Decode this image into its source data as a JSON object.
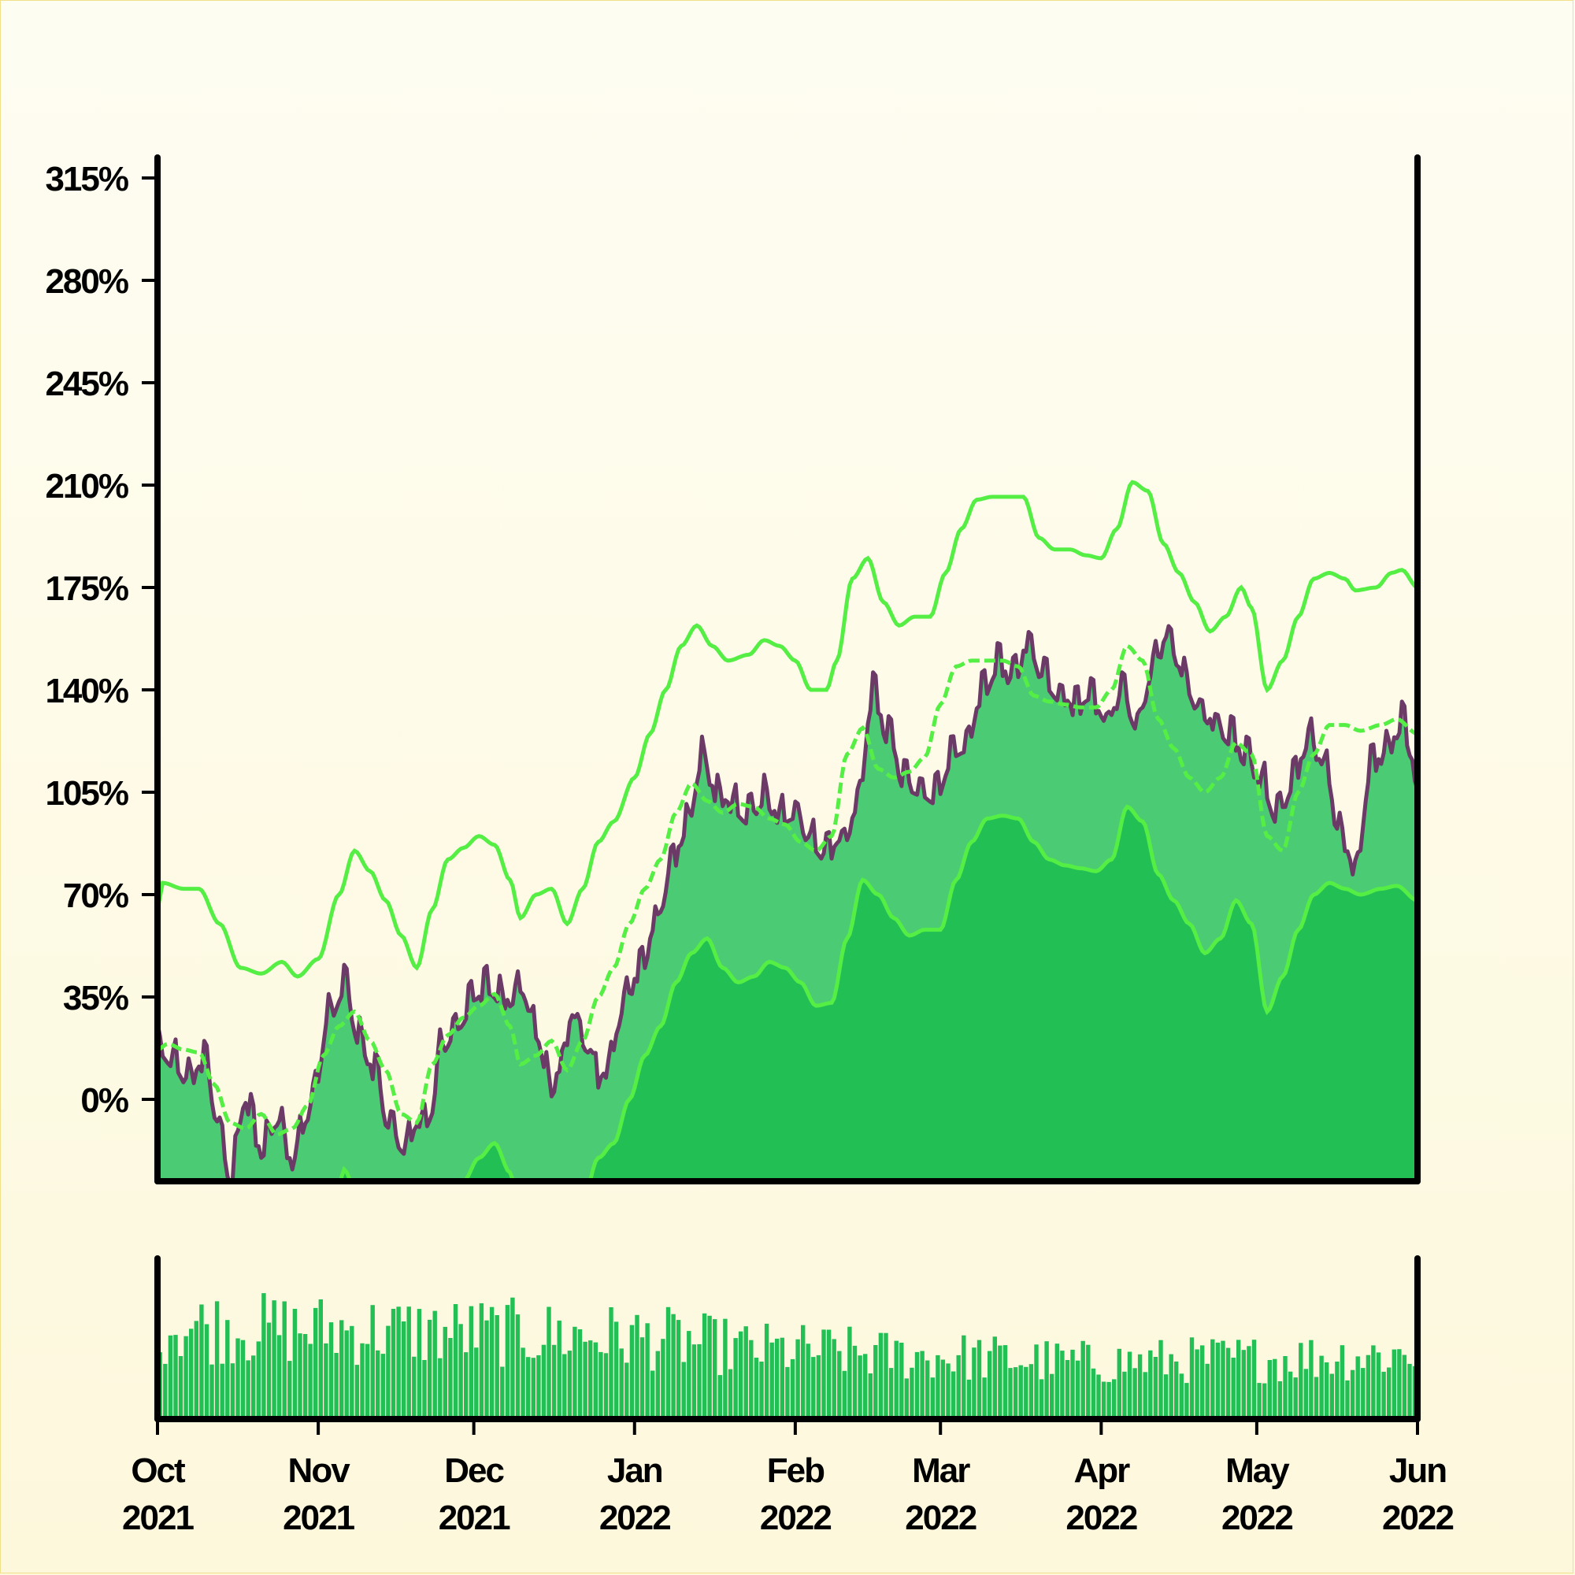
{
  "colors": {
    "band_fill": "#4ccb75",
    "lower_fill": "#22bf55",
    "band_line": "#55ee44",
    "price_line": "#6b3a66",
    "volume": "#22bf55",
    "axis": "#000000"
  },
  "chart_data": {
    "type": "area",
    "description_series": [
      "price",
      "upper band",
      "middle band",
      "lower band",
      "volume"
    ],
    "y_ticks": [
      "315%",
      "280%",
      "245%",
      "210%",
      "175%",
      "140%",
      "105%",
      "70%",
      "35%",
      "0%"
    ],
    "y_tick_values": [
      315,
      280,
      245,
      210,
      175,
      140,
      105,
      70,
      35,
      0
    ],
    "ylim": [
      -28,
      322
    ],
    "x_ticks": [
      {
        "month": "Oct",
        "year": "2021"
      },
      {
        "month": "Nov",
        "year": "2021"
      },
      {
        "month": "Dec",
        "year": "2021"
      },
      {
        "month": "Jan",
        "year": "2022"
      },
      {
        "month": "Feb",
        "year": "2022"
      },
      {
        "month": "Mar",
        "year": "2022"
      },
      {
        "month": "Apr",
        "year": "2022"
      },
      {
        "month": "May",
        "year": "2022"
      },
      {
        "month": "Jun",
        "year": "2022"
      }
    ],
    "x_tick_days": [
      0,
      31,
      61,
      92,
      123,
      151,
      182,
      212,
      243
    ],
    "xlim_days": [
      0,
      243
    ],
    "price_anchors": [
      [
        0,
        20
      ],
      [
        3,
        15
      ],
      [
        6,
        8
      ],
      [
        9,
        14
      ],
      [
        12,
        -8
      ],
      [
        14,
        -25
      ],
      [
        17,
        0
      ],
      [
        20,
        -16
      ],
      [
        23,
        -5
      ],
      [
        26,
        -20
      ],
      [
        29,
        -3
      ],
      [
        31,
        10
      ],
      [
        33,
        30
      ],
      [
        36,
        40
      ],
      [
        39,
        22
      ],
      [
        42,
        10
      ],
      [
        45,
        -10
      ],
      [
        48,
        -15
      ],
      [
        50,
        -5
      ],
      [
        52,
        -8
      ],
      [
        55,
        20
      ],
      [
        58,
        28
      ],
      [
        61,
        35
      ],
      [
        64,
        40
      ],
      [
        67,
        35
      ],
      [
        70,
        38
      ],
      [
        73,
        25
      ],
      [
        76,
        5
      ],
      [
        78,
        15
      ],
      [
        80,
        30
      ],
      [
        83,
        20
      ],
      [
        85,
        8
      ],
      [
        87,
        12
      ],
      [
        90,
        35
      ],
      [
        93,
        45
      ],
      [
        96,
        60
      ],
      [
        99,
        80
      ],
      [
        102,
        95
      ],
      [
        105,
        118
      ],
      [
        108,
        105
      ],
      [
        111,
        102
      ],
      [
        114,
        98
      ],
      [
        117,
        105
      ],
      [
        120,
        98
      ],
      [
        123,
        100
      ],
      [
        126,
        90
      ],
      [
        129,
        85
      ],
      [
        132,
        90
      ],
      [
        135,
        100
      ],
      [
        138,
        140
      ],
      [
        141,
        125
      ],
      [
        144,
        110
      ],
      [
        147,
        108
      ],
      [
        150,
        105
      ],
      [
        153,
        118
      ],
      [
        156,
        120
      ],
      [
        159,
        140
      ],
      [
        162,
        150
      ],
      [
        165,
        145
      ],
      [
        168,
        158
      ],
      [
        171,
        145
      ],
      [
        174,
        140
      ],
      [
        177,
        135
      ],
      [
        180,
        138
      ],
      [
        183,
        130
      ],
      [
        186,
        140
      ],
      [
        189,
        130
      ],
      [
        192,
        150
      ],
      [
        195,
        160
      ],
      [
        198,
        145
      ],
      [
        201,
        135
      ],
      [
        204,
        130
      ],
      [
        207,
        125
      ],
      [
        210,
        118
      ],
      [
        213,
        110
      ],
      [
        216,
        98
      ],
      [
        219,
        110
      ],
      [
        222,
        125
      ],
      [
        225,
        115
      ],
      [
        228,
        92
      ],
      [
        231,
        80
      ],
      [
        234,
        115
      ],
      [
        237,
        120
      ],
      [
        240,
        130
      ],
      [
        242,
        120
      ],
      [
        243,
        100
      ]
    ],
    "upper_band_anchors": [
      [
        0,
        65
      ],
      [
        1,
        74
      ],
      [
        5,
        72
      ],
      [
        8,
        72
      ],
      [
        12,
        60
      ],
      [
        16,
        45
      ],
      [
        20,
        43
      ],
      [
        24,
        47
      ],
      [
        27,
        42
      ],
      [
        31,
        48
      ],
      [
        35,
        70
      ],
      [
        38,
        85
      ],
      [
        41,
        78
      ],
      [
        44,
        68
      ],
      [
        47,
        56
      ],
      [
        50,
        45
      ],
      [
        53,
        65
      ],
      [
        56,
        82
      ],
      [
        59,
        86
      ],
      [
        62,
        90
      ],
      [
        65,
        87
      ],
      [
        68,
        75
      ],
      [
        70,
        62
      ],
      [
        73,
        70
      ],
      [
        76,
        72
      ],
      [
        79,
        60
      ],
      [
        82,
        72
      ],
      [
        85,
        88
      ],
      [
        88,
        95
      ],
      [
        92,
        110
      ],
      [
        95,
        125
      ],
      [
        98,
        140
      ],
      [
        101,
        155
      ],
      [
        104,
        162
      ],
      [
        107,
        155
      ],
      [
        110,
        150
      ],
      [
        114,
        152
      ],
      [
        117,
        157
      ],
      [
        120,
        155
      ],
      [
        123,
        150
      ],
      [
        126,
        140
      ],
      [
        129,
        140
      ],
      [
        131,
        150
      ],
      [
        134,
        178
      ],
      [
        137,
        185
      ],
      [
        140,
        170
      ],
      [
        143,
        162
      ],
      [
        146,
        165
      ],
      [
        149,
        165
      ],
      [
        152,
        180
      ],
      [
        155,
        195
      ],
      [
        158,
        205
      ],
      [
        161,
        206
      ],
      [
        164,
        206
      ],
      [
        167,
        206
      ],
      [
        170,
        192
      ],
      [
        173,
        188
      ],
      [
        176,
        188
      ],
      [
        179,
        186
      ],
      [
        182,
        185
      ],
      [
        185,
        195
      ],
      [
        188,
        211
      ],
      [
        191,
        208
      ],
      [
        194,
        190
      ],
      [
        197,
        180
      ],
      [
        200,
        170
      ],
      [
        203,
        160
      ],
      [
        206,
        165
      ],
      [
        209,
        175
      ],
      [
        211,
        168
      ],
      [
        214,
        140
      ],
      [
        217,
        150
      ],
      [
        220,
        165
      ],
      [
        223,
        178
      ],
      [
        226,
        180
      ],
      [
        229,
        178
      ],
      [
        231,
        174
      ],
      [
        235,
        175
      ],
      [
        238,
        180
      ],
      [
        240,
        181
      ],
      [
        243,
        175
      ]
    ],
    "middle_band_anchors": [
      [
        0,
        17
      ],
      [
        2,
        19
      ],
      [
        5,
        17
      ],
      [
        8,
        16
      ],
      [
        11,
        5
      ],
      [
        14,
        -8
      ],
      [
        17,
        -10
      ],
      [
        20,
        -5
      ],
      [
        23,
        -12
      ],
      [
        26,
        -10
      ],
      [
        29,
        -2
      ],
      [
        32,
        15
      ],
      [
        35,
        25
      ],
      [
        38,
        30
      ],
      [
        41,
        20
      ],
      [
        44,
        10
      ],
      [
        47,
        -5
      ],
      [
        50,
        -8
      ],
      [
        53,
        12
      ],
      [
        56,
        22
      ],
      [
        59,
        28
      ],
      [
        62,
        32
      ],
      [
        65,
        36
      ],
      [
        68,
        25
      ],
      [
        70,
        12
      ],
      [
        73,
        15
      ],
      [
        76,
        20
      ],
      [
        79,
        10
      ],
      [
        82,
        20
      ],
      [
        85,
        35
      ],
      [
        88,
        45
      ],
      [
        91,
        60
      ],
      [
        94,
        72
      ],
      [
        97,
        82
      ],
      [
        100,
        98
      ],
      [
        103,
        108
      ],
      [
        106,
        102
      ],
      [
        109,
        98
      ],
      [
        112,
        101
      ],
      [
        115,
        100
      ],
      [
        118,
        96
      ],
      [
        121,
        94
      ],
      [
        124,
        88
      ],
      [
        127,
        85
      ],
      [
        130,
        90
      ],
      [
        133,
        118
      ],
      [
        136,
        127
      ],
      [
        139,
        113
      ],
      [
        142,
        110
      ],
      [
        145,
        112
      ],
      [
        148,
        117
      ],
      [
        151,
        135
      ],
      [
        154,
        148
      ],
      [
        157,
        150
      ],
      [
        160,
        150
      ],
      [
        163,
        150
      ],
      [
        166,
        148
      ],
      [
        169,
        138
      ],
      [
        172,
        136
      ],
      [
        175,
        135
      ],
      [
        178,
        134
      ],
      [
        181,
        134
      ],
      [
        184,
        140
      ],
      [
        187,
        155
      ],
      [
        190,
        150
      ],
      [
        193,
        130
      ],
      [
        196,
        120
      ],
      [
        199,
        110
      ],
      [
        202,
        105
      ],
      [
        205,
        110
      ],
      [
        208,
        122
      ],
      [
        211,
        118
      ],
      [
        214,
        90
      ],
      [
        217,
        85
      ],
      [
        220,
        105
      ],
      [
        223,
        118
      ],
      [
        226,
        128
      ],
      [
        229,
        128
      ],
      [
        232,
        126
      ],
      [
        236,
        128
      ],
      [
        239,
        130
      ],
      [
        243,
        125
      ]
    ],
    "lower_band_anchors": [
      [
        0,
        -35
      ],
      [
        4,
        -36
      ],
      [
        8,
        -40
      ],
      [
        12,
        -50
      ],
      [
        16,
        -55
      ],
      [
        20,
        -55
      ],
      [
        24,
        -60
      ],
      [
        28,
        -55
      ],
      [
        31,
        -60
      ],
      [
        34,
        -40
      ],
      [
        36,
        -24
      ],
      [
        38,
        -30
      ],
      [
        41,
        -45
      ],
      [
        44,
        -60
      ],
      [
        47,
        -65
      ],
      [
        50,
        -72
      ],
      [
        53,
        -50
      ],
      [
        56,
        -40
      ],
      [
        59,
        -28
      ],
      [
        62,
        -20
      ],
      [
        65,
        -15
      ],
      [
        68,
        -25
      ],
      [
        70,
        -40
      ],
      [
        73,
        -45
      ],
      [
        76,
        -40
      ],
      [
        79,
        -45
      ],
      [
        82,
        -35
      ],
      [
        85,
        -20
      ],
      [
        88,
        -15
      ],
      [
        91,
        0
      ],
      [
        94,
        15
      ],
      [
        97,
        25
      ],
      [
        100,
        40
      ],
      [
        103,
        50
      ],
      [
        106,
        55
      ],
      [
        109,
        45
      ],
      [
        112,
        40
      ],
      [
        115,
        42
      ],
      [
        118,
        47
      ],
      [
        121,
        45
      ],
      [
        124,
        40
      ],
      [
        127,
        32
      ],
      [
        130,
        33
      ],
      [
        133,
        55
      ],
      [
        136,
        75
      ],
      [
        139,
        70
      ],
      [
        142,
        62
      ],
      [
        145,
        56
      ],
      [
        148,
        58
      ],
      [
        151,
        58
      ],
      [
        154,
        75
      ],
      [
        157,
        88
      ],
      [
        160,
        96
      ],
      [
        163,
        97
      ],
      [
        166,
        96
      ],
      [
        169,
        88
      ],
      [
        172,
        82
      ],
      [
        175,
        80
      ],
      [
        178,
        79
      ],
      [
        181,
        78
      ],
      [
        184,
        82
      ],
      [
        187,
        100
      ],
      [
        190,
        95
      ],
      [
        193,
        77
      ],
      [
        196,
        68
      ],
      [
        199,
        60
      ],
      [
        202,
        50
      ],
      [
        205,
        55
      ],
      [
        208,
        68
      ],
      [
        211,
        60
      ],
      [
        214,
        30
      ],
      [
        217,
        42
      ],
      [
        220,
        58
      ],
      [
        223,
        70
      ],
      [
        226,
        74
      ],
      [
        229,
        72
      ],
      [
        232,
        70
      ],
      [
        236,
        72
      ],
      [
        239,
        73
      ],
      [
        243,
        68
      ]
    ],
    "volume_profile": [
      [
        0,
        0.75
      ],
      [
        30,
        0.72
      ],
      [
        60,
        0.7
      ],
      [
        90,
        0.66
      ],
      [
        120,
        0.55
      ],
      [
        150,
        0.5
      ],
      [
        180,
        0.45
      ],
      [
        210,
        0.48
      ],
      [
        243,
        0.52
      ]
    ]
  }
}
